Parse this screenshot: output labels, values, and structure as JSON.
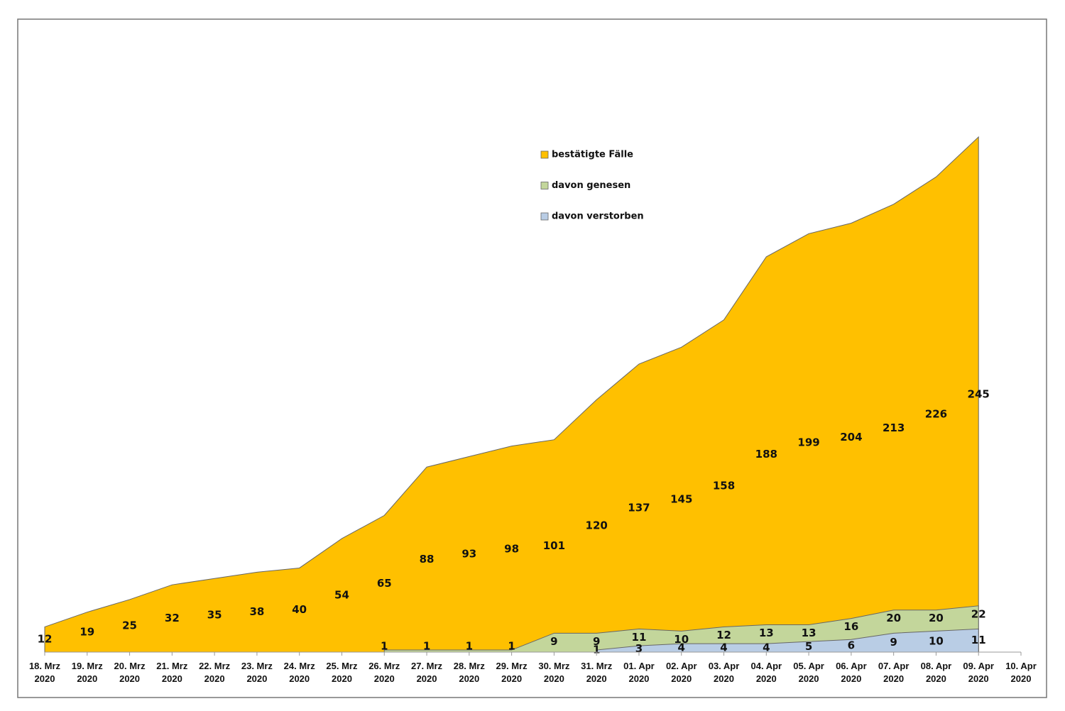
{
  "chart_data": {
    "type": "area",
    "categories": [
      "18. Mrz 2020",
      "19. Mrz 2020",
      "20. Mrz 2020",
      "21. Mrz 2020",
      "22. Mrz 2020",
      "23. Mrz 2020",
      "24. Mrz 2020",
      "25. Mrz 2020",
      "26. Mrz 2020",
      "27. Mrz 2020",
      "28. Mrz 2020",
      "29. Mrz 2020",
      "30. Mrz 2020",
      "31. Mrz 2020",
      "01. Apr 2020",
      "02. Apr 2020",
      "03. Apr 2020",
      "04. Apr 2020",
      "05. Apr 2020",
      "06. Apr 2020",
      "07. Apr 2020",
      "08. Apr 2020",
      "09. Apr 2020",
      "10. Apr 2020"
    ],
    "series": [
      {
        "name": "bestätigte Fälle",
        "color": "#ffc000",
        "values": [
          12,
          19,
          25,
          32,
          35,
          38,
          40,
          54,
          65,
          88,
          93,
          98,
          101,
          120,
          137,
          145,
          158,
          188,
          199,
          204,
          213,
          226,
          245,
          null
        ]
      },
      {
        "name": "davon genesen",
        "color": "#c3d69b",
        "values": [
          null,
          null,
          null,
          null,
          null,
          null,
          null,
          null,
          1,
          1,
          1,
          1,
          9,
          9,
          11,
          10,
          12,
          13,
          13,
          16,
          20,
          20,
          22,
          null
        ]
      },
      {
        "name": "davon verstorben",
        "color": "#b9cde5",
        "values": [
          null,
          null,
          null,
          null,
          null,
          null,
          null,
          null,
          null,
          null,
          null,
          null,
          null,
          1,
          3,
          4,
          4,
          4,
          5,
          6,
          9,
          10,
          11,
          null
        ]
      }
    ],
    "ylim": [
      0,
      245
    ],
    "data_labels": true
  }
}
